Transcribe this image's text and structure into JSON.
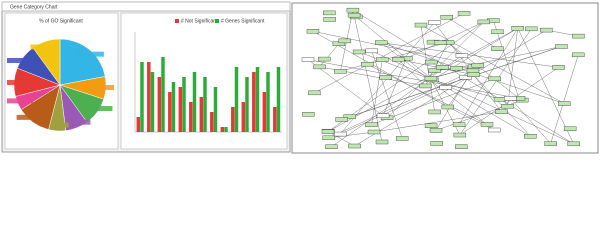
{
  "window_title": "Gene Category Chart",
  "chart_data": [
    {
      "type": "pie",
      "title": "% of GO Significant",
      "values": [
        22,
        8,
        10,
        8,
        6,
        12,
        5,
        10,
        9,
        10
      ],
      "colors": [
        "#33b5e5",
        "#f39c12",
        "#4caf50",
        "#9b59b6",
        "#a0a040",
        "#b85c1a",
        "#e84393",
        "#e53935",
        "#3f51b5",
        "#f1c40f"
      ]
    },
    {
      "type": "bar",
      "categories": [
        null,
        null,
        null,
        null,
        null,
        null,
        null,
        null,
        null,
        null,
        null,
        null,
        null,
        null
      ],
      "series": [
        {
          "name": "# Not Significant",
          "color": "#e53935",
          "values": [
            15,
            70,
            55,
            40,
            45,
            30,
            35,
            20,
            5,
            25,
            30,
            60,
            40,
            25
          ]
        },
        {
          "name": "# Genes Significant",
          "color": "#2eaa3a",
          "values": [
            70,
            60,
            75,
            50,
            55,
            60,
            55,
            45,
            5,
            65,
            55,
            65,
            60,
            65
          ]
        }
      ],
      "ylim": [
        0,
        100
      ]
    }
  ]
}
